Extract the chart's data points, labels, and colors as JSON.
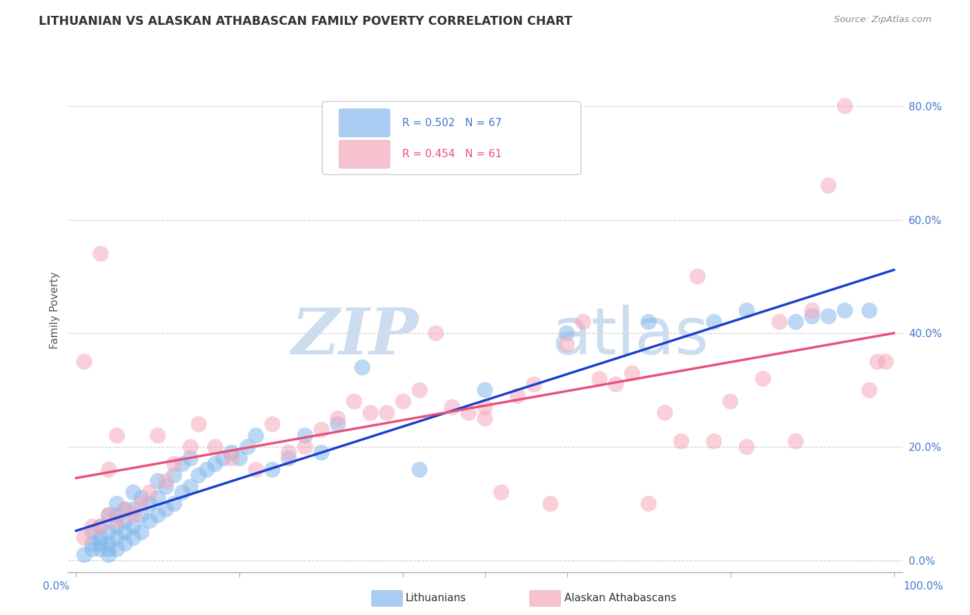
{
  "title": "LITHUANIAN VS ALASKAN ATHABASCAN FAMILY POVERTY CORRELATION CHART",
  "source": "Source: ZipAtlas.com",
  "ylabel": "Family Poverty",
  "ytick_labels": [
    "0.0%",
    "20.0%",
    "40.0%",
    "60.0%",
    "80.0%"
  ],
  "ytick_values": [
    0.0,
    0.2,
    0.4,
    0.6,
    0.8
  ],
  "xlim": [
    -0.01,
    1.01
  ],
  "ylim": [
    -0.02,
    0.9
  ],
  "legend_R_blue": "R = 0.502",
  "legend_N_blue": "N = 67",
  "legend_R_pink": "R = 0.454",
  "legend_N_pink": "N = 61",
  "blue_color": "#85b8ed",
  "pink_color": "#f5a8bc",
  "blue_line_color": "#1a3fcc",
  "pink_line_color": "#e8507a",
  "blue_dashed_color": "#aabbdd",
  "background_color": "#ffffff",
  "grid_color": "#cccccc",
  "title_color": "#333333",
  "tick_label_color": "#4477cc",
  "watermark_zip_color": "#ccddf0",
  "watermark_atlas_color": "#ccddf0",
  "blue_x": [
    0.01,
    0.02,
    0.02,
    0.02,
    0.03,
    0.03,
    0.03,
    0.03,
    0.04,
    0.04,
    0.04,
    0.04,
    0.04,
    0.05,
    0.05,
    0.05,
    0.05,
    0.05,
    0.06,
    0.06,
    0.06,
    0.06,
    0.07,
    0.07,
    0.07,
    0.07,
    0.08,
    0.08,
    0.08,
    0.09,
    0.09,
    0.1,
    0.1,
    0.1,
    0.11,
    0.11,
    0.12,
    0.12,
    0.13,
    0.13,
    0.14,
    0.14,
    0.15,
    0.16,
    0.17,
    0.18,
    0.19,
    0.2,
    0.21,
    0.22,
    0.24,
    0.26,
    0.28,
    0.3,
    0.32,
    0.35,
    0.42,
    0.5,
    0.6,
    0.7,
    0.78,
    0.82,
    0.88,
    0.9,
    0.92,
    0.94,
    0.97
  ],
  "blue_y": [
    0.01,
    0.02,
    0.03,
    0.05,
    0.02,
    0.03,
    0.04,
    0.06,
    0.01,
    0.02,
    0.03,
    0.05,
    0.08,
    0.02,
    0.04,
    0.06,
    0.08,
    0.1,
    0.03,
    0.05,
    0.07,
    0.09,
    0.04,
    0.06,
    0.09,
    0.12,
    0.05,
    0.08,
    0.11,
    0.07,
    0.1,
    0.08,
    0.11,
    0.14,
    0.09,
    0.13,
    0.1,
    0.15,
    0.12,
    0.17,
    0.13,
    0.18,
    0.15,
    0.16,
    0.17,
    0.18,
    0.19,
    0.18,
    0.2,
    0.22,
    0.16,
    0.18,
    0.22,
    0.19,
    0.24,
    0.34,
    0.16,
    0.3,
    0.4,
    0.42,
    0.42,
    0.44,
    0.42,
    0.43,
    0.43,
    0.44,
    0.44
  ],
  "pink_x": [
    0.01,
    0.01,
    0.02,
    0.03,
    0.03,
    0.04,
    0.04,
    0.05,
    0.05,
    0.06,
    0.07,
    0.08,
    0.09,
    0.1,
    0.11,
    0.12,
    0.14,
    0.15,
    0.17,
    0.19,
    0.22,
    0.24,
    0.26,
    0.28,
    0.3,
    0.32,
    0.34,
    0.36,
    0.38,
    0.4,
    0.42,
    0.44,
    0.46,
    0.48,
    0.5,
    0.5,
    0.52,
    0.54,
    0.56,
    0.58,
    0.6,
    0.62,
    0.64,
    0.66,
    0.68,
    0.7,
    0.72,
    0.74,
    0.76,
    0.78,
    0.8,
    0.82,
    0.84,
    0.86,
    0.88,
    0.9,
    0.92,
    0.94,
    0.97,
    0.98,
    0.99
  ],
  "pink_y": [
    0.04,
    0.35,
    0.06,
    0.06,
    0.54,
    0.08,
    0.16,
    0.07,
    0.22,
    0.09,
    0.08,
    0.1,
    0.12,
    0.22,
    0.14,
    0.17,
    0.2,
    0.24,
    0.2,
    0.18,
    0.16,
    0.24,
    0.19,
    0.2,
    0.23,
    0.25,
    0.28,
    0.26,
    0.26,
    0.28,
    0.3,
    0.4,
    0.27,
    0.26,
    0.25,
    0.27,
    0.12,
    0.29,
    0.31,
    0.1,
    0.38,
    0.42,
    0.32,
    0.31,
    0.33,
    0.1,
    0.26,
    0.21,
    0.5,
    0.21,
    0.28,
    0.2,
    0.32,
    0.42,
    0.21,
    0.44,
    0.66,
    0.8,
    0.3,
    0.35,
    0.35
  ]
}
